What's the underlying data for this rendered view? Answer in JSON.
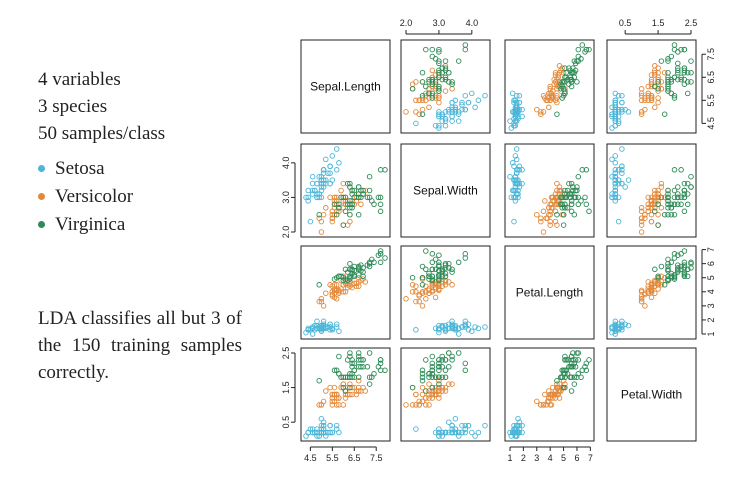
{
  "summary": {
    "variables": "4 variables",
    "species": "3 species",
    "samples": "50 samples/class"
  },
  "legend": [
    {
      "label": "Setosa",
      "color": "#4bb6d8"
    },
    {
      "label": "Versicolor",
      "color": "#e3893a"
    },
    {
      "label": "Virginica",
      "color": "#2e8b57"
    }
  ],
  "note": "LDA classifies all but 3 of the 150 training samples correctly.",
  "chart_data": {
    "type": "scatter",
    "variables": [
      "Sepal.Length",
      "Sepal.Width",
      "Petal.Length",
      "Petal.Width"
    ],
    "ranges": [
      [
        4.3,
        7.9
      ],
      [
        2.0,
        4.4
      ],
      [
        1.0,
        6.9
      ],
      [
        0.1,
        2.5
      ]
    ],
    "ticks": [
      [
        "4.5",
        "5.5",
        "6.5",
        "7.5"
      ],
      [
        "2.0",
        "3.0",
        "4.0"
      ],
      [
        "1",
        "2",
        "3",
        "4",
        "5",
        "6",
        "7"
      ],
      [
        "0.5",
        "1.5",
        "2.5"
      ]
    ],
    "colors": {
      "setosa": "#4bb6d8",
      "versicolor": "#e3893a",
      "virginica": "#2e8b57"
    },
    "series": [
      {
        "name": "Setosa",
        "points": [
          [
            5.1,
            3.5,
            1.4,
            0.2
          ],
          [
            4.9,
            3.0,
            1.4,
            0.2
          ],
          [
            4.7,
            3.2,
            1.3,
            0.2
          ],
          [
            4.6,
            3.1,
            1.5,
            0.2
          ],
          [
            5.0,
            3.6,
            1.4,
            0.2
          ],
          [
            5.4,
            3.9,
            1.7,
            0.4
          ],
          [
            4.6,
            3.4,
            1.4,
            0.3
          ],
          [
            5.0,
            3.4,
            1.5,
            0.2
          ],
          [
            4.4,
            2.9,
            1.4,
            0.2
          ],
          [
            4.9,
            3.1,
            1.5,
            0.1
          ],
          [
            5.4,
            3.7,
            1.5,
            0.2
          ],
          [
            4.8,
            3.4,
            1.6,
            0.2
          ],
          [
            4.8,
            3.0,
            1.4,
            0.1
          ],
          [
            4.3,
            3.0,
            1.1,
            0.1
          ],
          [
            5.8,
            4.0,
            1.2,
            0.2
          ],
          [
            5.7,
            4.4,
            1.5,
            0.4
          ],
          [
            5.4,
            3.9,
            1.3,
            0.4
          ],
          [
            5.1,
            3.5,
            1.4,
            0.3
          ],
          [
            5.7,
            3.8,
            1.7,
            0.3
          ],
          [
            5.1,
            3.8,
            1.5,
            0.3
          ],
          [
            5.4,
            3.4,
            1.7,
            0.2
          ],
          [
            5.1,
            3.7,
            1.5,
            0.4
          ],
          [
            4.6,
            3.6,
            1.0,
            0.2
          ],
          [
            5.1,
            3.3,
            1.7,
            0.5
          ],
          [
            4.8,
            3.4,
            1.9,
            0.2
          ],
          [
            5.0,
            3.0,
            1.6,
            0.2
          ],
          [
            5.0,
            3.4,
            1.6,
            0.4
          ],
          [
            5.2,
            3.5,
            1.5,
            0.2
          ],
          [
            5.2,
            3.4,
            1.4,
            0.2
          ],
          [
            4.7,
            3.2,
            1.6,
            0.2
          ],
          [
            4.8,
            3.1,
            1.6,
            0.2
          ],
          [
            5.4,
            3.4,
            1.5,
            0.4
          ],
          [
            5.2,
            4.1,
            1.5,
            0.1
          ],
          [
            5.5,
            4.2,
            1.4,
            0.2
          ],
          [
            4.9,
            3.1,
            1.5,
            0.2
          ],
          [
            5.0,
            3.2,
            1.2,
            0.2
          ],
          [
            5.5,
            3.5,
            1.3,
            0.2
          ],
          [
            4.9,
            3.6,
            1.4,
            0.1
          ],
          [
            4.4,
            3.0,
            1.3,
            0.2
          ],
          [
            5.1,
            3.4,
            1.5,
            0.2
          ],
          [
            5.0,
            3.5,
            1.3,
            0.3
          ],
          [
            4.5,
            2.3,
            1.3,
            0.3
          ],
          [
            4.4,
            3.2,
            1.3,
            0.2
          ],
          [
            5.0,
            3.5,
            1.6,
            0.6
          ],
          [
            5.1,
            3.8,
            1.9,
            0.4
          ],
          [
            4.8,
            3.0,
            1.4,
            0.3
          ],
          [
            5.1,
            3.8,
            1.6,
            0.2
          ],
          [
            4.6,
            3.2,
            1.4,
            0.2
          ],
          [
            5.3,
            3.7,
            1.5,
            0.2
          ],
          [
            5.0,
            3.3,
            1.4,
            0.2
          ]
        ]
      },
      {
        "name": "Versicolor",
        "points": [
          [
            7.0,
            3.2,
            4.7,
            1.4
          ],
          [
            6.4,
            3.2,
            4.5,
            1.5
          ],
          [
            6.9,
            3.1,
            4.9,
            1.5
          ],
          [
            5.5,
            2.3,
            4.0,
            1.3
          ],
          [
            6.5,
            2.8,
            4.6,
            1.5
          ],
          [
            5.7,
            2.8,
            4.5,
            1.3
          ],
          [
            6.3,
            3.3,
            4.7,
            1.6
          ],
          [
            4.9,
            2.4,
            3.3,
            1.0
          ],
          [
            6.6,
            2.9,
            4.6,
            1.3
          ],
          [
            5.2,
            2.7,
            3.9,
            1.4
          ],
          [
            5.0,
            2.0,
            3.5,
            1.0
          ],
          [
            5.9,
            3.0,
            4.2,
            1.5
          ],
          [
            6.0,
            2.2,
            4.0,
            1.0
          ],
          [
            6.1,
            2.9,
            4.7,
            1.4
          ],
          [
            5.6,
            2.9,
            3.6,
            1.3
          ],
          [
            6.7,
            3.1,
            4.4,
            1.4
          ],
          [
            5.6,
            3.0,
            4.5,
            1.5
          ],
          [
            5.8,
            2.7,
            4.1,
            1.0
          ],
          [
            6.2,
            2.2,
            4.5,
            1.5
          ],
          [
            5.6,
            2.5,
            3.9,
            1.1
          ],
          [
            5.9,
            3.2,
            4.8,
            1.8
          ],
          [
            6.1,
            2.8,
            4.0,
            1.3
          ],
          [
            6.3,
            2.5,
            4.9,
            1.5
          ],
          [
            6.1,
            2.8,
            4.7,
            1.2
          ],
          [
            6.4,
            2.9,
            4.3,
            1.3
          ],
          [
            6.6,
            3.0,
            4.4,
            1.4
          ],
          [
            6.8,
            2.8,
            4.8,
            1.4
          ],
          [
            6.7,
            3.0,
            5.0,
            1.7
          ],
          [
            6.0,
            2.9,
            4.5,
            1.5
          ],
          [
            5.7,
            2.6,
            3.5,
            1.0
          ],
          [
            5.5,
            2.4,
            3.8,
            1.1
          ],
          [
            5.5,
            2.4,
            3.7,
            1.0
          ],
          [
            5.8,
            2.7,
            3.9,
            1.2
          ],
          [
            6.0,
            2.7,
            5.1,
            1.6
          ],
          [
            5.4,
            3.0,
            4.5,
            1.5
          ],
          [
            6.0,
            3.4,
            4.5,
            1.6
          ],
          [
            6.7,
            3.1,
            4.7,
            1.5
          ],
          [
            6.3,
            2.3,
            4.4,
            1.3
          ],
          [
            5.6,
            3.0,
            4.1,
            1.3
          ],
          [
            5.5,
            2.5,
            4.0,
            1.3
          ],
          [
            5.5,
            2.6,
            4.4,
            1.2
          ],
          [
            6.1,
            3.0,
            4.6,
            1.4
          ],
          [
            5.8,
            2.6,
            4.0,
            1.2
          ],
          [
            5.0,
            2.3,
            3.3,
            1.0
          ],
          [
            5.6,
            2.7,
            4.2,
            1.3
          ],
          [
            5.7,
            3.0,
            4.2,
            1.2
          ],
          [
            5.7,
            2.9,
            4.2,
            1.3
          ],
          [
            6.2,
            2.9,
            4.3,
            1.3
          ],
          [
            5.1,
            2.5,
            3.0,
            1.1
          ],
          [
            5.7,
            2.8,
            4.1,
            1.3
          ]
        ]
      },
      {
        "name": "Virginica",
        "points": [
          [
            6.3,
            3.3,
            6.0,
            2.5
          ],
          [
            5.8,
            2.7,
            5.1,
            1.9
          ],
          [
            7.1,
            3.0,
            5.9,
            2.1
          ],
          [
            6.3,
            2.9,
            5.6,
            1.8
          ],
          [
            6.5,
            3.0,
            5.8,
            2.2
          ],
          [
            7.6,
            3.0,
            6.6,
            2.1
          ],
          [
            4.9,
            2.5,
            4.5,
            1.7
          ],
          [
            7.3,
            2.9,
            6.3,
            1.8
          ],
          [
            6.7,
            2.5,
            5.8,
            1.8
          ],
          [
            7.2,
            3.6,
            6.1,
            2.5
          ],
          [
            6.5,
            3.2,
            5.1,
            2.0
          ],
          [
            6.4,
            2.7,
            5.3,
            1.9
          ],
          [
            6.8,
            3.0,
            5.5,
            2.1
          ],
          [
            5.7,
            2.5,
            5.0,
            2.0
          ],
          [
            5.8,
            2.8,
            5.1,
            2.4
          ],
          [
            6.4,
            3.2,
            5.3,
            2.3
          ],
          [
            6.5,
            3.0,
            5.5,
            1.8
          ],
          [
            7.7,
            3.8,
            6.7,
            2.2
          ],
          [
            7.7,
            2.6,
            6.9,
            2.3
          ],
          [
            6.0,
            2.2,
            5.0,
            1.5
          ],
          [
            6.9,
            3.2,
            5.7,
            2.3
          ],
          [
            5.6,
            2.8,
            4.9,
            2.0
          ],
          [
            7.7,
            2.8,
            6.7,
            2.0
          ],
          [
            6.3,
            2.7,
            4.9,
            1.8
          ],
          [
            6.7,
            3.3,
            5.7,
            2.1
          ],
          [
            7.2,
            3.2,
            6.0,
            1.8
          ],
          [
            6.2,
            2.8,
            4.8,
            1.8
          ],
          [
            6.1,
            3.0,
            4.9,
            1.8
          ],
          [
            6.4,
            2.8,
            5.6,
            2.1
          ],
          [
            7.2,
            3.0,
            5.8,
            1.6
          ],
          [
            7.4,
            2.8,
            6.1,
            1.9
          ],
          [
            7.9,
            3.8,
            6.4,
            2.0
          ],
          [
            6.4,
            2.8,
            5.6,
            2.2
          ],
          [
            6.3,
            2.8,
            5.1,
            1.5
          ],
          [
            6.1,
            2.6,
            5.6,
            1.4
          ],
          [
            7.7,
            3.0,
            6.1,
            2.3
          ],
          [
            6.3,
            3.4,
            5.6,
            2.4
          ],
          [
            6.4,
            3.1,
            5.5,
            1.8
          ],
          [
            6.0,
            3.0,
            4.8,
            1.8
          ],
          [
            6.9,
            3.1,
            5.4,
            2.1
          ],
          [
            6.7,
            3.1,
            5.6,
            2.4
          ],
          [
            6.9,
            3.1,
            5.1,
            2.3
          ],
          [
            5.8,
            2.7,
            5.1,
            1.9
          ],
          [
            6.8,
            3.2,
            5.9,
            2.3
          ],
          [
            6.7,
            3.3,
            5.7,
            2.5
          ],
          [
            6.7,
            3.0,
            5.2,
            2.3
          ],
          [
            6.3,
            2.5,
            5.0,
            1.9
          ],
          [
            6.5,
            3.0,
            5.2,
            2.0
          ],
          [
            6.2,
            3.4,
            5.4,
            2.3
          ],
          [
            5.9,
            3.0,
            5.1,
            1.8
          ]
        ]
      }
    ]
  }
}
